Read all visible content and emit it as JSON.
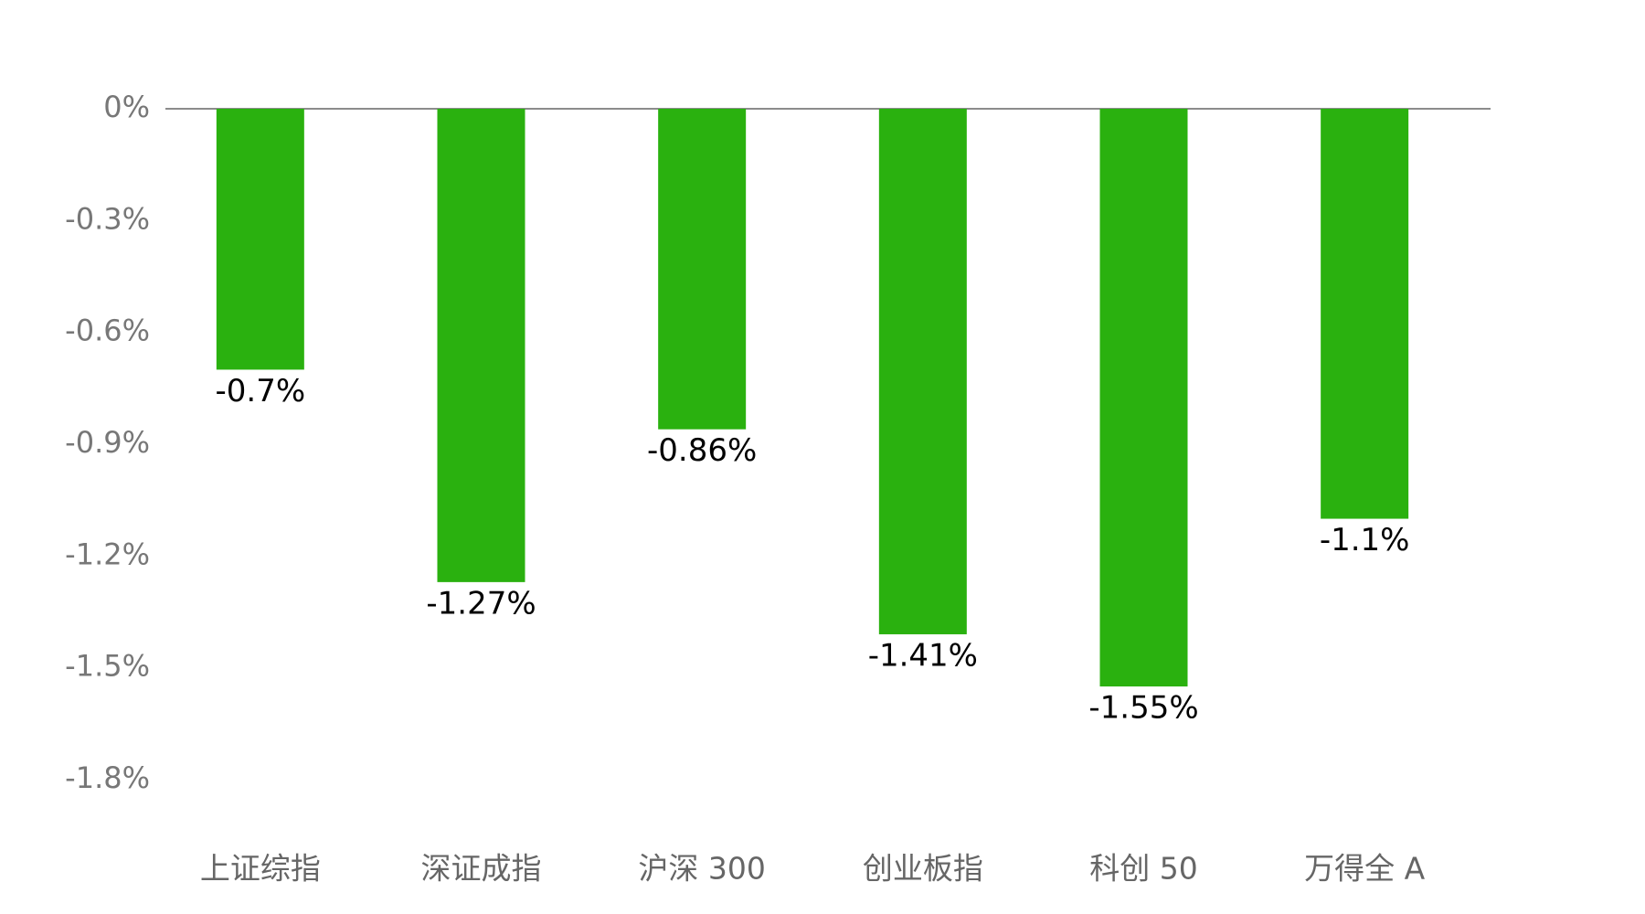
{
  "chart_data": {
    "type": "bar",
    "categories": [
      "上证综指",
      "深证成指",
      "沪深 300",
      "创业板指",
      "科创 50",
      "万得全 A"
    ],
    "values": [
      -0.7,
      -1.27,
      -0.86,
      -1.41,
      -1.55,
      -1.1
    ],
    "value_labels": [
      "-0.7%",
      "-1.27%",
      "-0.86%",
      "-1.41%",
      "-1.55%",
      "-1.1%"
    ],
    "color": "#2ab10f",
    "ylim": [
      -1.8,
      0
    ],
    "yticks": [
      {
        "value": 0,
        "label": "0%"
      },
      {
        "value": -0.3,
        "label": "-0.3%"
      },
      {
        "value": -0.6,
        "label": "-0.6%"
      },
      {
        "value": -0.9,
        "label": "-0.9%"
      },
      {
        "value": -1.2,
        "label": "-1.2%"
      },
      {
        "value": -1.5,
        "label": "-1.5%"
      },
      {
        "value": -1.8,
        "label": "-1.8%"
      }
    ]
  }
}
